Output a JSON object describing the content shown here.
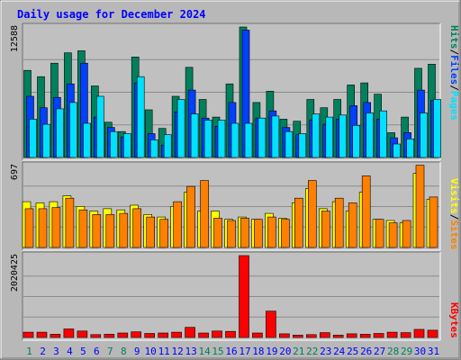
{
  "chart_data": {
    "type": "bar",
    "title": "Daily usage for December 2024",
    "categories": [
      "1",
      "2",
      "3",
      "4",
      "5",
      "6",
      "7",
      "8",
      "9",
      "10",
      "11",
      "12",
      "13",
      "14",
      "15",
      "16",
      "17",
      "18",
      "19",
      "20",
      "21",
      "22",
      "23",
      "24",
      "25",
      "26",
      "27",
      "28",
      "29",
      "30",
      "31"
    ],
    "weekend_days": [
      1,
      7,
      8,
      14,
      15,
      21,
      22,
      28,
      29
    ],
    "panels": [
      {
        "id": "hits",
        "max_label": "12588",
        "ylim": [
          0,
          12588
        ],
        "series": [
          {
            "name": "Hits",
            "color": "#00805c",
            "values": [
              8400,
              7800,
              9100,
              10100,
              10300,
              6900,
              3400,
              2500,
              9700,
              4600,
              2800,
              5900,
              8700,
              5600,
              3900,
              7100,
              12588,
              5300,
              6400,
              3700,
              3500,
              5600,
              4800,
              5600,
              7000,
              7200,
              6100,
              2400,
              3900,
              8600,
              9000
            ]
          },
          {
            "name": "Files",
            "color": "#0040ff",
            "values": [
              5900,
              4800,
              5800,
              7100,
              9100,
              3900,
              2900,
              2000,
              7200,
              2300,
              1200,
              4400,
              6500,
              3800,
              3000,
              5300,
              12288,
              3800,
              4500,
              2900,
              2200,
              3600,
              3200,
              3700,
              5000,
              5300,
              3700,
              1900,
              2400,
              6500,
              5500
            ]
          },
          {
            "name": "Pages",
            "color": "#00e0ff",
            "values": [
              3700,
              3200,
              4700,
              5300,
              3300,
              5900,
              2500,
              2300,
              7800,
              1700,
              2200,
              5600,
              4200,
              3600,
              3600,
              3300,
              3300,
              3800,
              4000,
              2500,
              2300,
              4200,
              3900,
              4100,
              3100,
              4300,
              4500,
              1300,
              1800,
              4300,
              5600
            ]
          }
        ]
      },
      {
        "id": "visits",
        "max_label": "697",
        "ylim": [
          0,
          697
        ],
        "series": [
          {
            "name": "Visits",
            "color": "#ffff00",
            "values": [
              390,
              380,
              390,
              440,
              350,
              310,
              330,
              320,
              360,
              280,
              260,
              350,
              470,
              310,
              310,
              240,
              260,
              240,
              290,
              250,
              380,
              500,
              330,
              390,
              310,
              470,
              240,
              230,
              210,
              630,
              410
            ]
          },
          {
            "name": "Sites",
            "color": "#ff8000",
            "values": [
              330,
              330,
              340,
              420,
              320,
              280,
              280,
              290,
              330,
              260,
              240,
              390,
              520,
              570,
              250,
              230,
              250,
              240,
              260,
              240,
              420,
              570,
              310,
              420,
              380,
              610,
              240,
              210,
              230,
              700,
              430
            ]
          }
        ]
      },
      {
        "id": "kbytes",
        "max_label": "2020425",
        "ylim": [
          0,
          2020425
        ],
        "series": [
          {
            "name": "KBytes",
            "color": "#ff0000",
            "values": [
              130000,
              130000,
              80000,
              210000,
              160000,
              70000,
              80000,
              110000,
              140000,
              100000,
              110000,
              130000,
              250000,
              110000,
              160000,
              150000,
              2020425,
              110000,
              650000,
              90000,
              60000,
              70000,
              120000,
              60000,
              90000,
              80000,
              100000,
              130000,
              120000,
              200000,
              180000
            ]
          }
        ]
      }
    ]
  },
  "legend": {
    "hits_right": [
      "Hits",
      "/",
      "Files",
      "/",
      "Pages"
    ],
    "visits_right": [
      "Visits",
      "/",
      "Sites"
    ],
    "kbytes_right": [
      "KBytes"
    ]
  },
  "colors": {
    "background": "#b8b8b8",
    "plot_bg": "#c0c0c0",
    "title": "#0000ff",
    "weekend_label": "#00805c",
    "weekday_label": "#0000ff",
    "axis_label": "#000000"
  }
}
